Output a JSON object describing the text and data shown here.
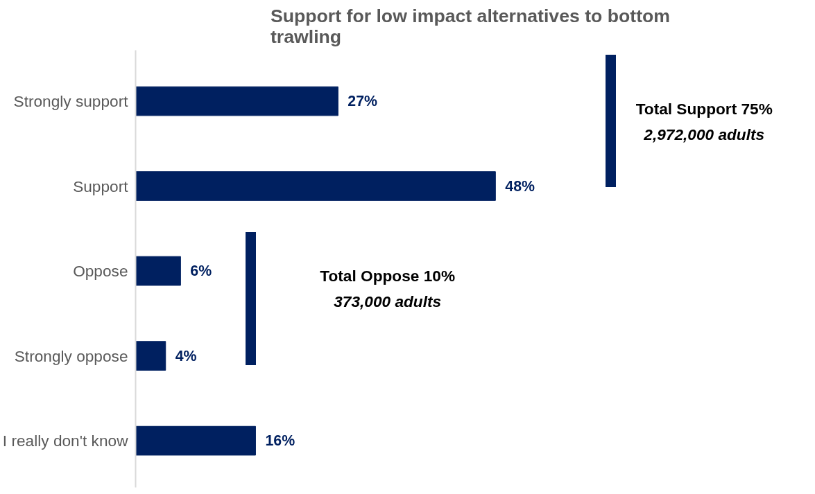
{
  "chart_data": {
    "type": "bar",
    "orientation": "horizontal",
    "title": "Support for low impact alternatives to bottom trawling",
    "categories": [
      "Strongly support",
      "Support",
      "Oppose",
      "Strongly oppose",
      "I really don't know"
    ],
    "values": [
      27,
      48,
      6,
      4,
      16
    ],
    "value_labels": [
      "27%",
      "48%",
      "6%",
      "4%",
      "16%"
    ],
    "color": "#002060",
    "grid": false,
    "tick_labels": "y",
    "annotations": [
      "Total Support 75%",
      "2,972,000 adults",
      "Total Oppose 10%",
      "373,000 adults"
    ]
  }
}
